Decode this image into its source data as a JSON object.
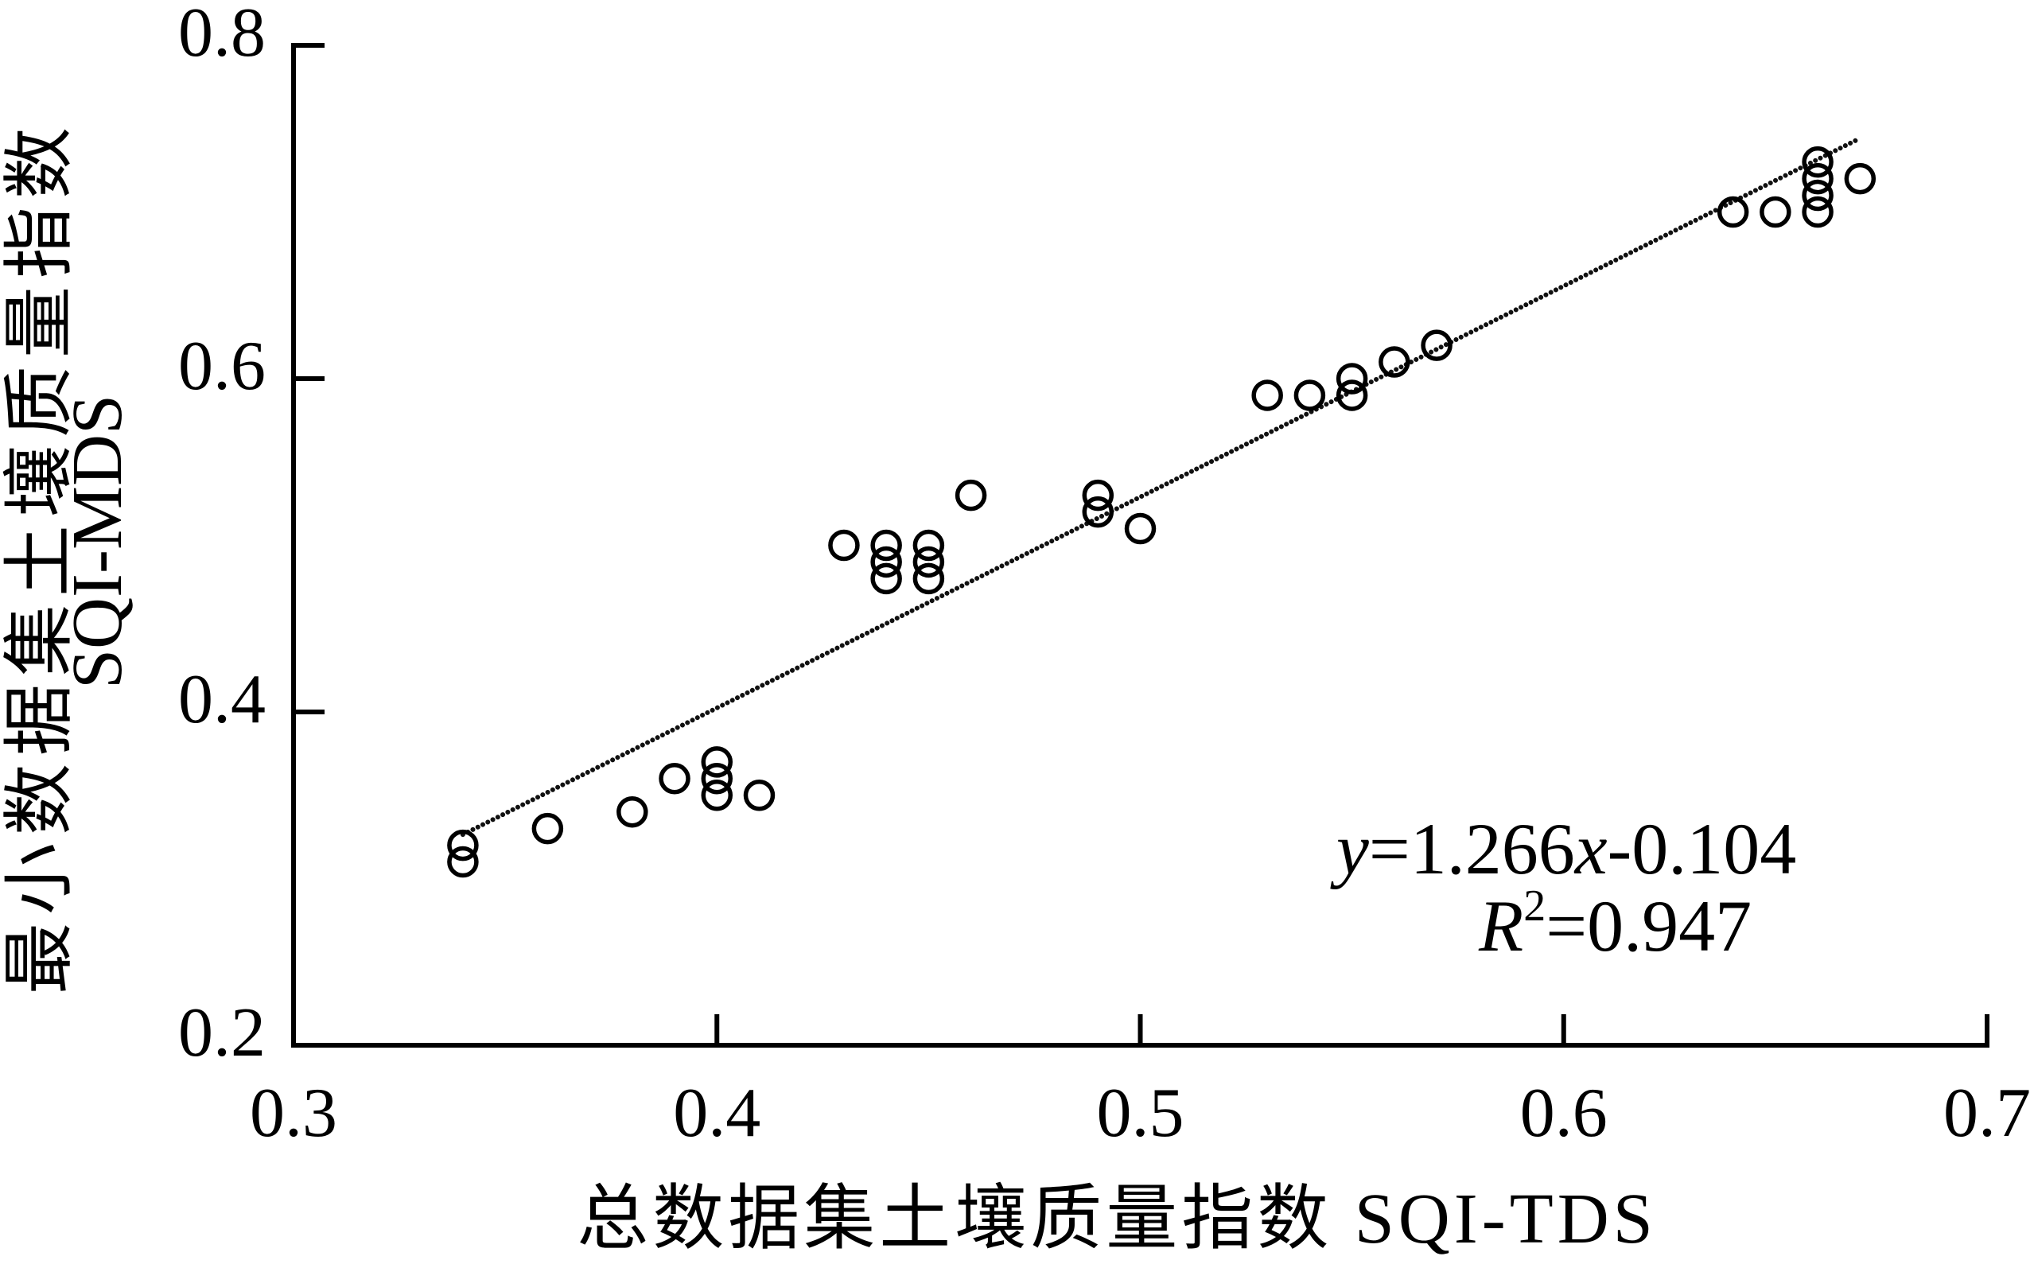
{
  "chart_data": {
    "type": "scatter",
    "xlabel": "总数据集土壤质量指数 SQI-TDS",
    "ylabel": [
      "最小数据集土壤质量指数",
      "SQI-MDS"
    ],
    "xlim": [
      0.3,
      0.7
    ],
    "ylim": [
      0.2,
      0.8
    ],
    "xtick_labels": [
      "0.3",
      "0.4",
      "0.5",
      "0.6",
      "0.7"
    ],
    "ytick_labels": [
      "0.2",
      "0.4",
      "0.6",
      "0.8"
    ],
    "grid": false,
    "color": "#000000",
    "x": [
      0.34,
      0.34,
      0.36,
      0.38,
      0.39,
      0.4,
      0.4,
      0.4,
      0.41,
      0.43,
      0.44,
      0.44,
      0.44,
      0.45,
      0.45,
      0.45,
      0.46,
      0.49,
      0.49,
      0.5,
      0.53,
      0.54,
      0.55,
      0.55,
      0.56,
      0.57,
      0.64,
      0.65,
      0.66,
      0.66,
      0.66,
      0.66,
      0.67
    ],
    "y": [
      0.32,
      0.31,
      0.33,
      0.34,
      0.36,
      0.37,
      0.36,
      0.35,
      0.35,
      0.5,
      0.5,
      0.49,
      0.48,
      0.5,
      0.49,
      0.48,
      0.53,
      0.53,
      0.52,
      0.51,
      0.59,
      0.59,
      0.6,
      0.59,
      0.61,
      0.62,
      0.7,
      0.7,
      0.73,
      0.72,
      0.71,
      0.7,
      0.72
    ],
    "fit": {
      "slope": 1.266,
      "intercept": -0.104,
      "r_squared": 0.947,
      "x_range": [
        0.34,
        0.67
      ]
    },
    "annotation": {
      "equation": {
        "lhs": "y",
        "coef": "=1.266",
        "var": "x",
        "const": "-0.104"
      },
      "r_squared": {
        "symbol": "R",
        "exponent": "2",
        "value": "=0.947"
      }
    }
  }
}
